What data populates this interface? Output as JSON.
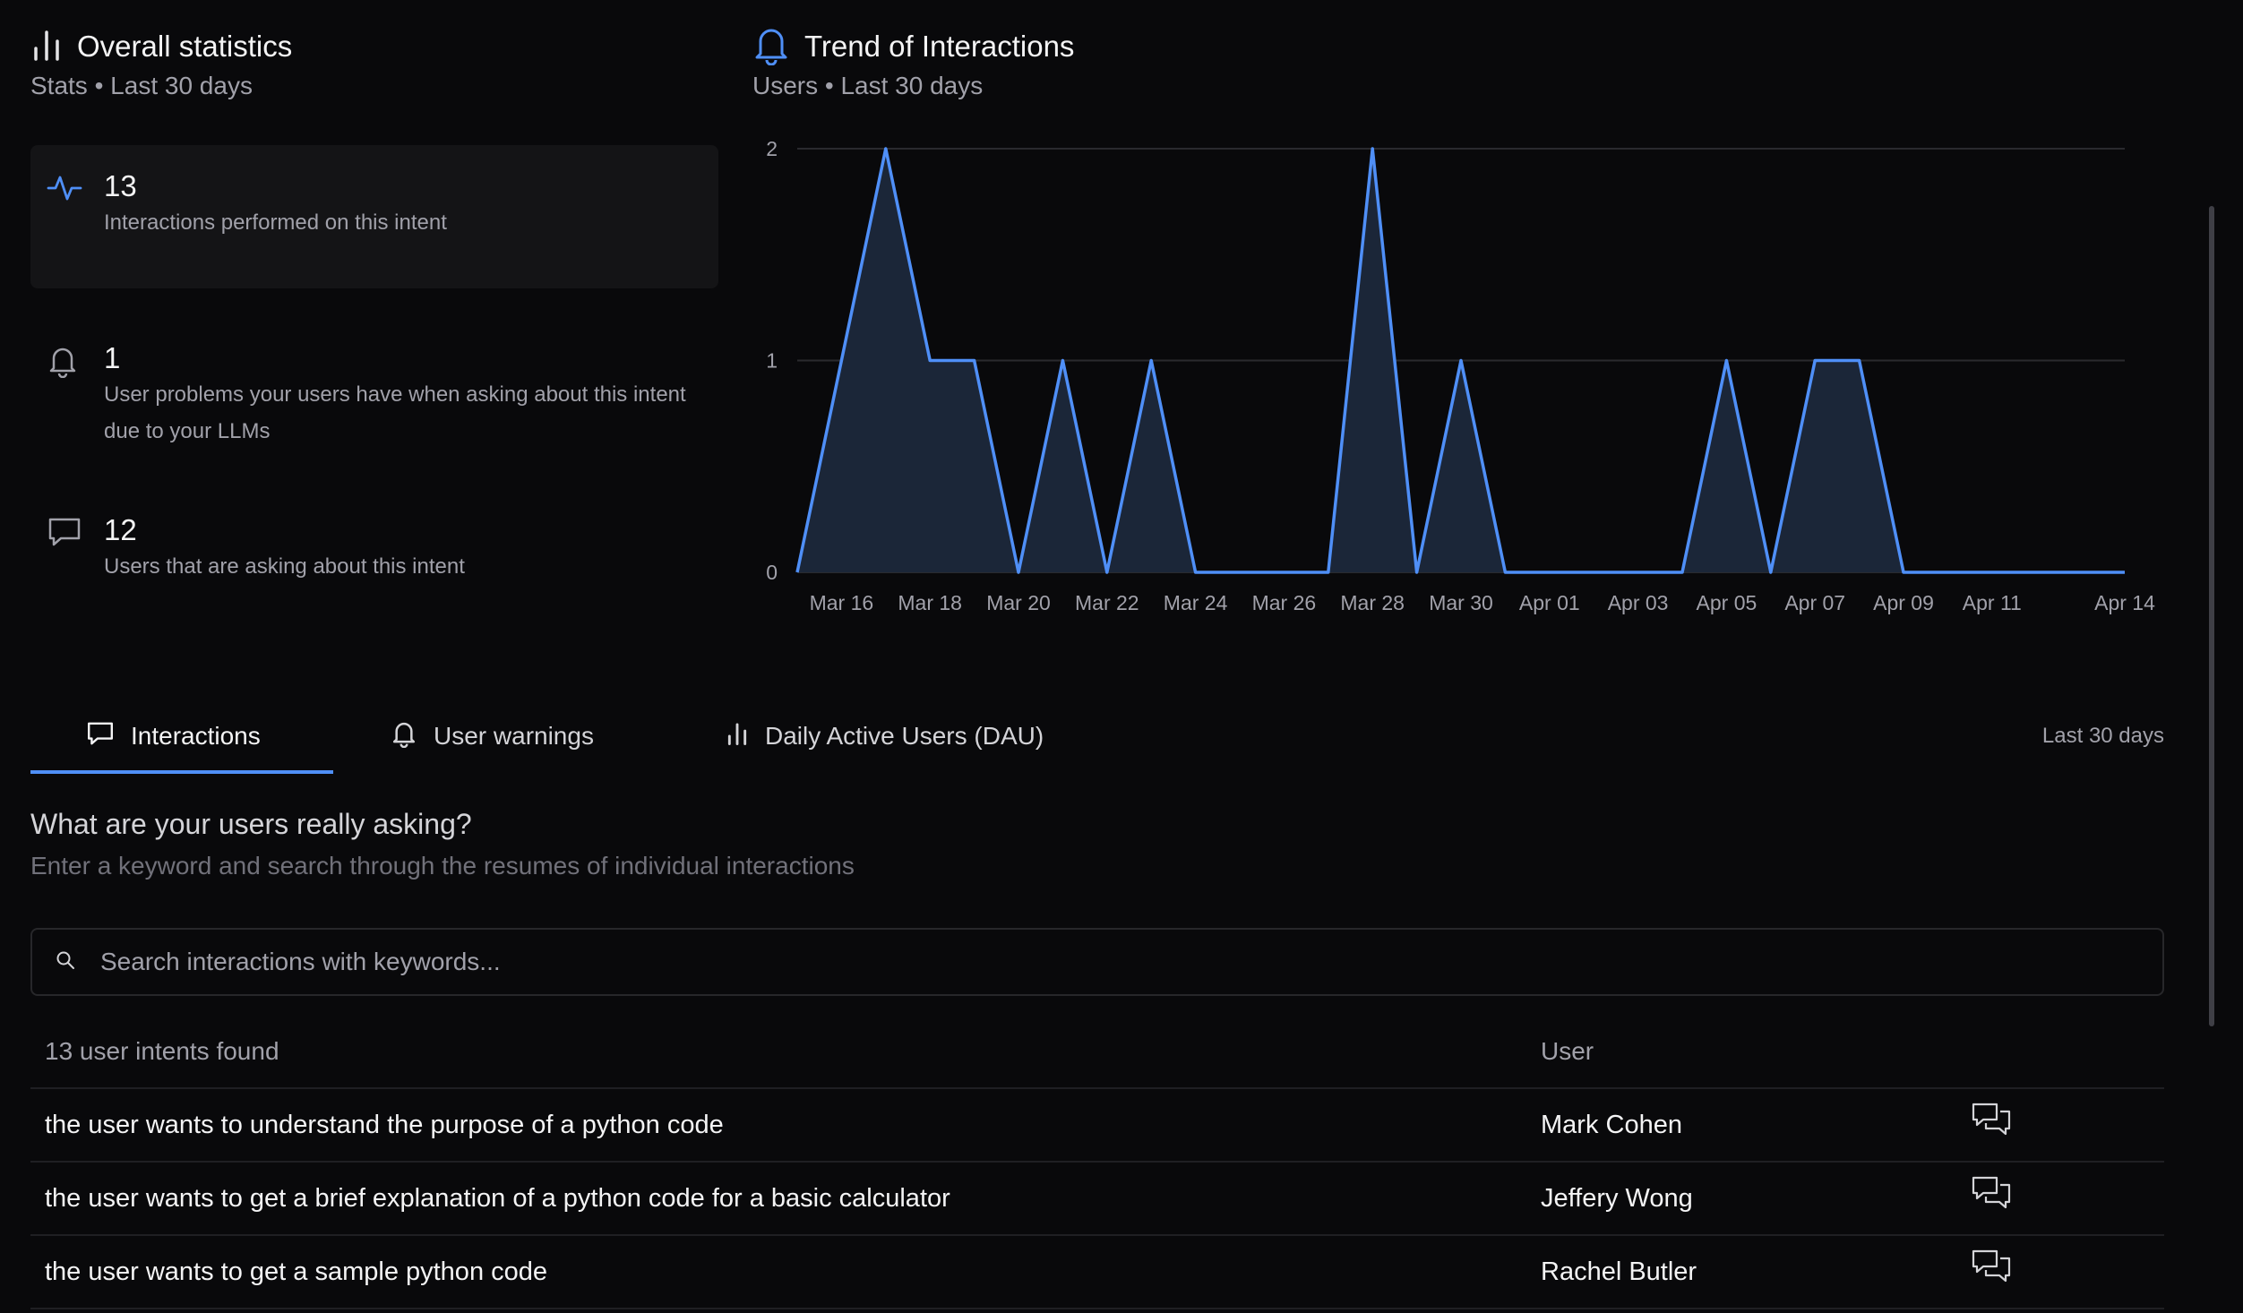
{
  "colors": {
    "accent": "#4f8ff7",
    "background": "#09090b",
    "area_fill": "#1b2638"
  },
  "overall": {
    "title": "Overall statistics",
    "subtitle": "Stats • Last 30 days",
    "stats": [
      {
        "icon": "activity-icon",
        "value": "13",
        "desc": "Interactions performed on this intent"
      },
      {
        "icon": "bell-icon",
        "value": "1",
        "desc": "User problems your users have when asking about this intent due to your LLMs"
      },
      {
        "icon": "message-icon",
        "value": "12",
        "desc": "Users that are asking about this intent"
      }
    ]
  },
  "trend": {
    "title": "Trend of Interactions",
    "subtitle": "Users • Last 30 days"
  },
  "chart_data": {
    "type": "area",
    "title": "Trend of Interactions",
    "ylim": [
      0,
      2
    ],
    "yticks": [
      "0",
      "1",
      "2"
    ],
    "grid": true,
    "xtick_labels": [
      "Mar 16",
      "Mar 18",
      "Mar 20",
      "Mar 22",
      "Mar 24",
      "Mar 26",
      "Mar 28",
      "Mar 30",
      "Apr 01",
      "Apr 03",
      "Apr 05",
      "Apr 07",
      "Apr 09",
      "Apr 11",
      "Apr 14"
    ],
    "x": [
      "Mar 15",
      "Mar 16",
      "Mar 17",
      "Mar 18",
      "Mar 19",
      "Mar 20",
      "Mar 21",
      "Mar 22",
      "Mar 23",
      "Mar 24",
      "Mar 25",
      "Mar 26",
      "Mar 27",
      "Mar 28",
      "Mar 29",
      "Mar 30",
      "Mar 31",
      "Apr 01",
      "Apr 02",
      "Apr 03",
      "Apr 04",
      "Apr 05",
      "Apr 06",
      "Apr 07",
      "Apr 08",
      "Apr 09",
      "Apr 10",
      "Apr 11",
      "Apr 12",
      "Apr 13",
      "Apr 14"
    ],
    "series": [
      {
        "values": [
          0,
          1,
          2,
          1,
          1,
          0,
          1,
          0,
          1,
          0,
          0,
          0,
          0,
          2,
          0,
          1,
          0,
          0,
          0,
          0,
          0,
          1,
          0,
          1,
          1,
          0,
          0,
          0,
          0,
          0,
          0
        ]
      }
    ]
  },
  "tabs": [
    {
      "label": "Interactions",
      "icon": "message-icon",
      "active": true
    },
    {
      "label": "User warnings",
      "icon": "bell-icon",
      "active": false
    },
    {
      "label": "Daily Active Users (DAU)",
      "icon": "bar-chart-icon",
      "active": false
    }
  ],
  "range_label": "Last 30 days",
  "ask": {
    "title": "What are your users really asking?",
    "subtitle": "Enter a keyword and search through the resumes of individual interactions"
  },
  "search": {
    "placeholder": "Search interactions with keywords...",
    "value": ""
  },
  "table": {
    "count_label": "13 user intents found",
    "user_header": "User",
    "rows": [
      {
        "intent": "the user wants to understand the purpose of a python code",
        "user": "Mark Cohen"
      },
      {
        "intent": "the user wants to get a brief explanation of a python code for a basic calculator",
        "user": "Jeffery Wong"
      },
      {
        "intent": "the user wants to get a sample python code",
        "user": "Rachel Butler"
      }
    ]
  }
}
